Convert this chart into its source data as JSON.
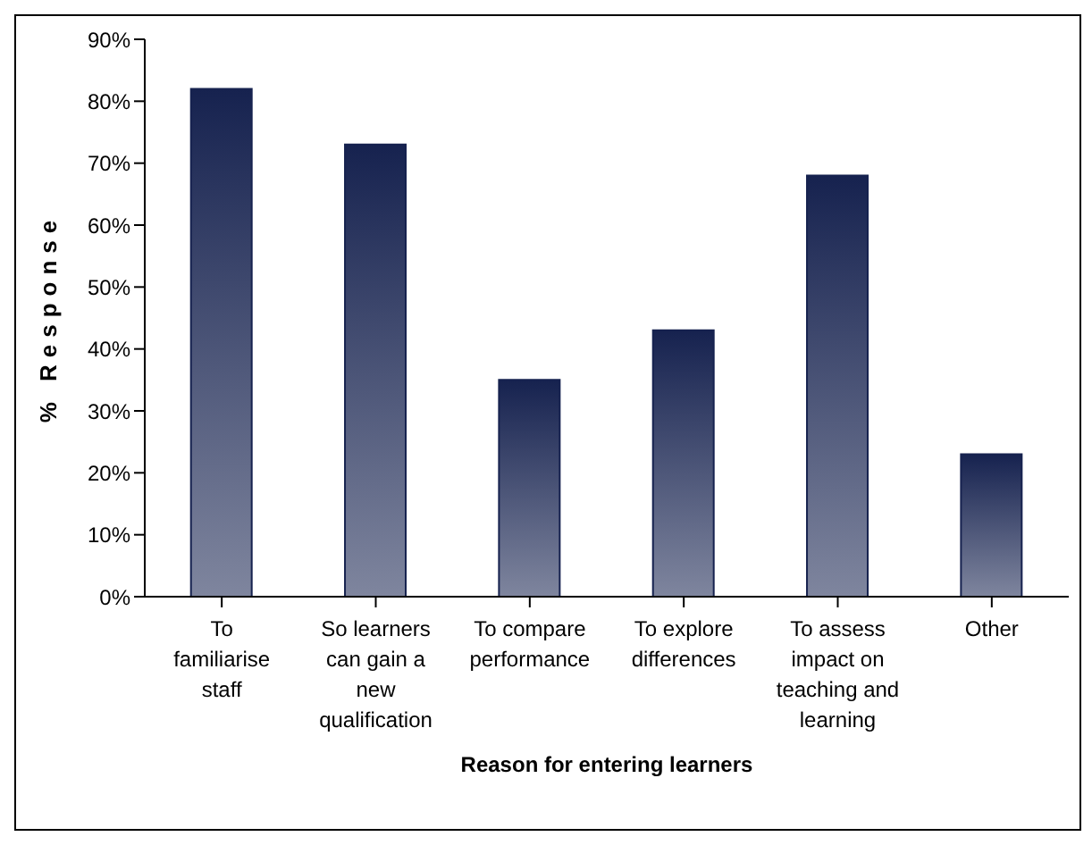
{
  "chart_data": {
    "type": "bar",
    "xlabel": "Reason for entering learners",
    "ylabel": "% Response",
    "categories": [
      "To familiarise staff",
      "So learners can gain a new qualification",
      "To compare performance",
      "To explore differences",
      "To assess impact on teaching and learning",
      "Other"
    ],
    "values": [
      82,
      73,
      35,
      43,
      68,
      23
    ],
    "color": "#16224f",
    "ylim": [
      0,
      90
    ],
    "yticks": [
      {
        "value": 0,
        "label": "0%"
      },
      {
        "value": 10,
        "label": "10%"
      },
      {
        "value": 20,
        "label": "20%"
      },
      {
        "value": 30,
        "label": "30%"
      },
      {
        "value": 40,
        "label": "40%"
      },
      {
        "value": 50,
        "label": "50%"
      },
      {
        "value": 60,
        "label": "60%"
      },
      {
        "value": 70,
        "label": "70%"
      },
      {
        "value": 80,
        "label": "80%"
      },
      {
        "value": 90,
        "label": "90%"
      }
    ],
    "grid": false,
    "legend": false
  }
}
